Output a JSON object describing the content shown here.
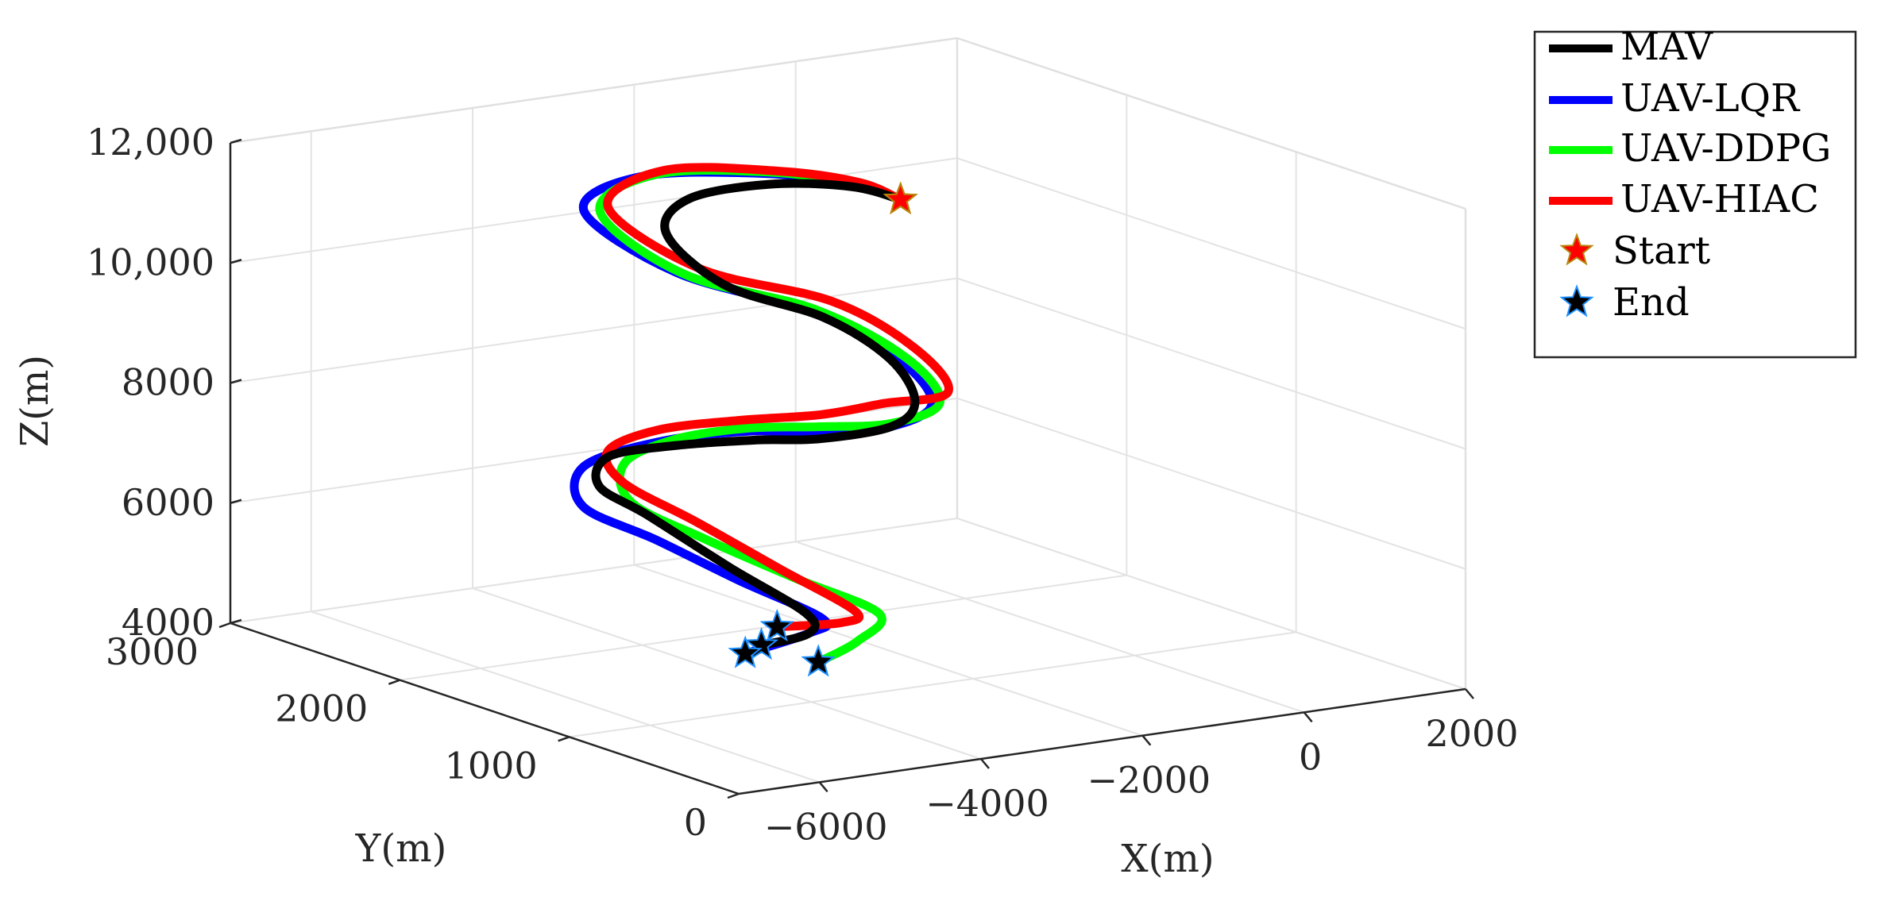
{
  "chart_data": {
    "type": "line",
    "projection": "3d",
    "xlabel": "X(m)",
    "ylabel": "Y(m)",
    "zlabel": "Z(m)",
    "xlim": [
      -7000,
      2000
    ],
    "ylim": [
      0,
      3000
    ],
    "zlim": [
      4000,
      12000
    ],
    "xticks": [
      -6000,
      -4000,
      -2000,
      0,
      2000
    ],
    "yticks": [
      0,
      1000,
      2000,
      3000
    ],
    "zticks": [
      4000,
      6000,
      8000,
      10000,
      12000
    ],
    "xtick_labels": [
      "−6000",
      "−4000",
      "−2000",
      "0",
      "2000"
    ],
    "ytick_labels": [
      "0",
      "1000",
      "2000",
      "3000"
    ],
    "ztick_labels": [
      "4000",
      "6000",
      "8000",
      "10,000",
      "12,000"
    ],
    "grid": true,
    "box": true,
    "legend_location": "northeast-outside",
    "series": [
      {
        "name": "MAV",
        "color": "#000000",
        "points": [
          [
            -800,
            2000,
            10800
          ],
          [
            -1200,
            2100,
            11000
          ],
          [
            -2000,
            2200,
            11100
          ],
          [
            -3000,
            2200,
            11050
          ],
          [
            -3700,
            2000,
            10800
          ],
          [
            -3600,
            1700,
            10200
          ],
          [
            -2800,
            1500,
            9700
          ],
          [
            -2200,
            1400,
            9000
          ],
          [
            -2300,
            1200,
            8500
          ],
          [
            -3000,
            1000,
            8400
          ],
          [
            -4100,
            900,
            8500
          ],
          [
            -5000,
            850,
            8700
          ],
          [
            -5700,
            1000,
            8600
          ],
          [
            -6100,
            1200,
            8300
          ],
          [
            -6000,
            1300,
            7700
          ],
          [
            -5400,
            1300,
            7100
          ],
          [
            -4800,
            1100,
            6300
          ],
          [
            -4700,
            700,
            5900
          ],
          [
            -5500,
            300,
            6100
          ],
          [
            -6300,
            200,
            6150
          ]
        ],
        "start": [
          -800,
          2000,
          10800
        ],
        "end": [
          -6300,
          200,
          6150
        ]
      },
      {
        "name": "UAV-LQR",
        "color": "#0000ff",
        "points": [
          [
            -800,
            2000,
            10800
          ],
          [
            -1200,
            2100,
            11050
          ],
          [
            -2100,
            2200,
            11300
          ],
          [
            -3400,
            2300,
            11400
          ],
          [
            -4300,
            2200,
            11100
          ],
          [
            -4000,
            1800,
            10400
          ],
          [
            -3000,
            1500,
            9850
          ],
          [
            -2300,
            1300,
            9100
          ],
          [
            -2300,
            1100,
            8550
          ],
          [
            -3000,
            1000,
            8400
          ],
          [
            -4100,
            900,
            8600
          ],
          [
            -5000,
            900,
            8800
          ],
          [
            -5900,
            1000,
            8700
          ],
          [
            -6400,
            1200,
            8200
          ],
          [
            -6200,
            1300,
            7400
          ],
          [
            -5500,
            1200,
            6800
          ],
          [
            -4900,
            1000,
            6200
          ],
          [
            -4700,
            600,
            5900
          ],
          [
            -5500,
            300,
            6100
          ],
          [
            -6500,
            200,
            6050
          ]
        ],
        "start": [
          -800,
          2000,
          10800
        ],
        "end": [
          -6500,
          200,
          6050
        ]
      },
      {
        "name": "UAV-DDPG",
        "color": "#00ff00",
        "points": [
          [
            -800,
            2000,
            10800
          ],
          [
            -1200,
            2100,
            11050
          ],
          [
            -2000,
            2200,
            11300
          ],
          [
            -3200,
            2300,
            11400
          ],
          [
            -4100,
            2200,
            11050
          ],
          [
            -3900,
            1800,
            10350
          ],
          [
            -2900,
            1500,
            9850
          ],
          [
            -2200,
            1300,
            9100
          ],
          [
            -2200,
            1100,
            8550
          ],
          [
            -3000,
            1000,
            8450
          ],
          [
            -4100,
            900,
            8700
          ],
          [
            -5000,
            900,
            8850
          ],
          [
            -5700,
            1000,
            8700
          ],
          [
            -5900,
            1200,
            8150
          ],
          [
            -5600,
            1300,
            7350
          ],
          [
            -4900,
            1200,
            6700
          ],
          [
            -4200,
            1000,
            6100
          ],
          [
            -4000,
            600,
            5850
          ],
          [
            -4900,
            300,
            5850
          ],
          [
            -5700,
            150,
            5800
          ]
        ],
        "start": [
          -800,
          2000,
          10800
        ],
        "end": [
          -5700,
          150,
          5800
        ]
      },
      {
        "name": "UAV-HIAC",
        "color": "#ff0000",
        "points": [
          [
            -800,
            2000,
            10800
          ],
          [
            -1100,
            2100,
            11050
          ],
          [
            -1900,
            2200,
            11300
          ],
          [
            -3100,
            2300,
            11450
          ],
          [
            -4000,
            2200,
            11100
          ],
          [
            -3700,
            1800,
            10400
          ],
          [
            -2700,
            1500,
            9950
          ],
          [
            -2100,
            1300,
            9250
          ],
          [
            -2100,
            1100,
            8700
          ],
          [
            -3100,
            1000,
            8800
          ],
          [
            -4100,
            900,
            8900
          ],
          [
            -5100,
            900,
            9000
          ],
          [
            -5900,
            1000,
            8900
          ],
          [
            -6100,
            1200,
            8400
          ],
          [
            -5700,
            1300,
            7700
          ],
          [
            -5000,
            1200,
            7000
          ],
          [
            -4400,
            1000,
            6300
          ],
          [
            -4300,
            600,
            5950
          ],
          [
            -5100,
            300,
            6200
          ],
          [
            -6000,
            250,
            6350
          ]
        ],
        "start": [
          -800,
          2000,
          10800
        ],
        "end": [
          -6000,
          250,
          6350
        ]
      }
    ],
    "legend": {
      "entries": [
        "MAV",
        "UAV-LQR",
        "UAV-DDPG",
        "UAV-HIAC",
        "Start",
        "End"
      ],
      "start_marker_color": "#ff0000",
      "end_marker_color": "#000000"
    }
  }
}
